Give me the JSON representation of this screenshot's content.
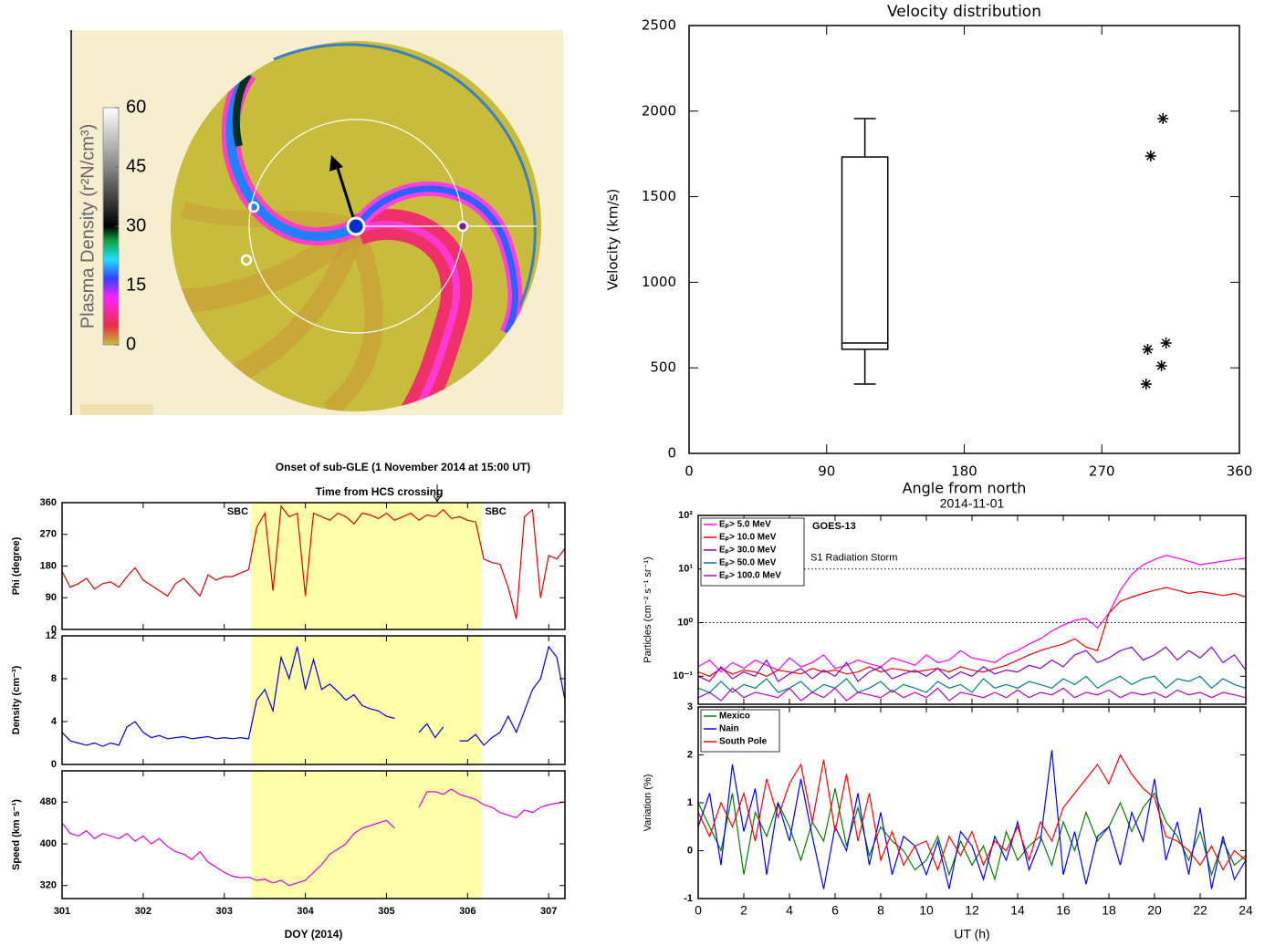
{
  "chart_data": [
    {
      "type": "image",
      "colorbar": {
        "label": "Plasma Density (r²N/cm³)",
        "lim": [
          0,
          60
        ],
        "ticks": [
          0,
          15,
          30,
          45,
          60
        ]
      }
    },
    {
      "type": "box",
      "title": "Velocity distribution",
      "xlabel": "Angle from north",
      "ylabel": "Velocity (km/s)",
      "xlim": [
        0,
        360
      ],
      "xticks": [
        0,
        90,
        180,
        270,
        360
      ],
      "ylim": [
        0,
        2500
      ],
      "yticks": [
        0,
        500,
        1000,
        1500,
        2000,
        2500
      ],
      "box": {
        "x_range": [
          100,
          130
        ],
        "whisker_low": 405,
        "q1": 608,
        "median": 645,
        "q3": 1732,
        "whisker_high": 1956
      },
      "points": {
        "x": [
          310,
          302,
          312,
          300,
          309,
          299
        ],
        "y": [
          1956,
          1738,
          645,
          608,
          512,
          405
        ]
      }
    },
    {
      "type": "line",
      "title": "Onset of sub-GLE (1 November 2014 at 15:00 UT)",
      "subtitle": "Time from HCS crossing",
      "onset_x": 305.625,
      "xlabel": "DOY (2014)",
      "xlim": [
        301,
        307.2
      ],
      "xticks": [
        301,
        302,
        303,
        304,
        305,
        306,
        307
      ],
      "shaded_span": [
        303.33,
        306.17
      ],
      "annotations": [
        "SBC",
        "SBC"
      ],
      "x": [
        301.0,
        301.1,
        301.2,
        301.3,
        301.4,
        301.5,
        301.6,
        301.7,
        301.8,
        301.9,
        302.0,
        302.1,
        302.2,
        302.3,
        302.4,
        302.5,
        302.6,
        302.7,
        302.8,
        302.9,
        303.0,
        303.1,
        303.2,
        303.3,
        303.4,
        303.5,
        303.6,
        303.7,
        303.8,
        303.9,
        304.0,
        304.1,
        304.2,
        304.3,
        304.4,
        304.5,
        304.6,
        304.7,
        304.8,
        304.9,
        305.0,
        305.1,
        305.2,
        305.3,
        305.4,
        305.5,
        305.6,
        305.7,
        305.8,
        305.9,
        306.0,
        306.1,
        306.2,
        306.3,
        306.4,
        306.5,
        306.6,
        306.7,
        306.8,
        306.9,
        307.0,
        307.1,
        307.2
      ],
      "panels": [
        {
          "ylabel": "Phi (degree)",
          "ylim": [
            0,
            360
          ],
          "yticks": [
            0,
            90,
            180,
            270,
            360
          ],
          "series": [
            {
              "color": "#e00000",
              "values": [
                165,
                120,
                130,
                145,
                115,
                130,
                135,
                120,
                150,
                175,
                140,
                125,
                110,
                95,
                130,
                145,
                120,
                95,
                155,
                140,
                150,
                150,
                160,
                170,
                290,
                330,
                110,
                350,
                320,
                330,
                95,
                330,
                320,
                310,
                330,
                320,
                300,
                330,
                325,
                315,
                330,
                310,
                320,
                330,
                310,
                325,
                320,
                340,
                315,
                320,
                310,
                305,
                200,
                190,
                185,
                120,
                30,
                320,
                340,
                90,
                210,
                200,
                230
              ]
            }
          ]
        },
        {
          "ylabel": "Density (cm⁻³)",
          "ylim": [
            0,
            12
          ],
          "yticks": [
            0,
            4,
            8,
            12
          ],
          "series": [
            {
              "color": "#0000e0",
              "values": [
                3,
                2.2,
                2,
                1.8,
                2,
                1.7,
                2,
                1.8,
                3.5,
                4,
                3,
                2.5,
                2.7,
                2.4,
                2.5,
                2.6,
                2.4,
                2.5,
                2.6,
                2.4,
                2.5,
                2.4,
                2.5,
                2.4,
                6,
                7,
                5,
                10,
                8,
                11,
                7,
                9.8,
                7,
                7.5,
                6.8,
                6,
                6.5,
                5.5,
                5.2,
                5,
                4.5,
                4.3,
                null,
                null,
                3,
                3.8,
                2.5,
                3.5,
                null,
                2.2,
                2.2,
                2.8,
                1.8,
                2.5,
                3,
                4.5,
                3,
                5,
                7,
                8,
                11,
                10,
                6
              ]
            }
          ]
        },
        {
          "ylabel": "Speed (km s⁻¹)",
          "ylim": [
            295,
            540
          ],
          "yticks": [
            320,
            400,
            480
          ],
          "series": [
            {
              "color": "#e000e0",
              "values": [
                440,
                420,
                415,
                425,
                410,
                420,
                415,
                410,
                420,
                405,
                415,
                400,
                410,
                395,
                385,
                380,
                370,
                385,
                365,
                355,
                345,
                338,
                335,
                336,
                330,
                332,
                325,
                330,
                320,
                325,
                330,
                345,
                360,
                380,
                390,
                400,
                420,
                430,
                435,
                440,
                445,
                430,
                null,
                null,
                470,
                500,
                500,
                495,
                505,
                495,
                490,
                485,
                475,
                470,
                460,
                455,
                450,
                465,
                460,
                470,
                475,
                478,
                480
              ]
            }
          ]
        }
      ]
    },
    {
      "type": "line",
      "title": "2014-11-01",
      "xlabel": "UT (h)",
      "xlim": [
        0,
        24
      ],
      "xticks": [
        0,
        2,
        4,
        6,
        8,
        10,
        12,
        14,
        16,
        18,
        20,
        22,
        24
      ],
      "x": [
        0,
        0.5,
        1,
        1.5,
        2,
        2.5,
        3,
        3.5,
        4,
        4.5,
        5,
        5.5,
        6,
        6.5,
        7,
        7.5,
        8,
        8.5,
        9,
        9.5,
        10,
        10.5,
        11,
        11.5,
        12,
        12.5,
        13,
        13.5,
        14,
        14.5,
        15,
        15.5,
        16,
        16.5,
        17,
        17.5,
        18,
        18.5,
        19,
        19.5,
        20,
        20.5,
        21,
        21.5,
        22,
        22.5,
        23,
        23.5,
        24
      ],
      "panels": [
        {
          "ylabel": "Particles (cm⁻² s⁻¹ sr⁻¹)",
          "log": true,
          "ylim": [
            0.03,
            100
          ],
          "legend": "upper left",
          "yticks": [
            {
              "value": 0.1,
              "label": "10⁻¹"
            },
            {
              "value": 1,
              "label": "10⁰"
            },
            {
              "value": 10,
              "label": "10¹"
            },
            {
              "value": 100,
              "label": "10²"
            }
          ],
          "annotation": "GOES-13",
          "reference_lines": [
            10,
            1
          ],
          "reference_label": "S1 Radiation Storm",
          "series": [
            {
              "name": "Eₚ>   5.0 MeV",
              "color": "#ff00ff",
              "values": [
                0.15,
                0.2,
                0.12,
                0.18,
                0.14,
                0.2,
                0.16,
                0.13,
                0.22,
                0.15,
                0.18,
                0.25,
                0.14,
                0.16,
                0.2,
                0.17,
                0.15,
                0.22,
                0.19,
                0.16,
                0.25,
                0.18,
                0.2,
                0.3,
                0.22,
                0.2,
                0.18,
                0.25,
                0.3,
                0.4,
                0.5,
                0.7,
                0.9,
                1.1,
                1.2,
                0.8,
                1.5,
                4,
                8,
                12,
                15,
                18,
                16,
                14,
                12,
                13,
                14,
                15,
                16
              ]
            },
            {
              "name": "Eₚ>  10.0 MeV",
              "color": "#ff0000",
              "values": [
                0.12,
                0.1,
                0.14,
                0.11,
                0.13,
                0.12,
                0.1,
                0.13,
                0.12,
                0.11,
                0.14,
                0.12,
                0.13,
                0.11,
                0.12,
                0.15,
                0.12,
                0.14,
                0.13,
                0.12,
                0.13,
                0.14,
                0.12,
                0.15,
                0.13,
                0.12,
                0.14,
                0.16,
                0.2,
                0.25,
                0.3,
                0.35,
                0.4,
                0.5,
                0.35,
                0.3,
                1.5,
                2.5,
                3,
                3.5,
                4,
                4.5,
                4,
                3.5,
                3.8,
                3.5,
                3.2,
                3.5,
                3
              ]
            },
            {
              "name": "Eₚ>  30.0 MeV",
              "color": "#8a00d0",
              "values": [
                0.1,
                0.08,
                0.15,
                0.09,
                0.12,
                0.1,
                0.2,
                0.08,
                0.11,
                0.14,
                0.09,
                0.13,
                0.1,
                0.18,
                0.08,
                0.12,
                0.15,
                0.09,
                0.11,
                0.13,
                0.1,
                0.14,
                0.09,
                0.12,
                0.1,
                0.15,
                0.11,
                0.13,
                0.12,
                0.16,
                0.14,
                0.2,
                0.15,
                0.25,
                0.3,
                0.18,
                0.22,
                0.3,
                0.35,
                0.2,
                0.25,
                0.35,
                0.2,
                0.3,
                0.22,
                0.35,
                0.18,
                0.25,
                0.13
              ]
            },
            {
              "name": "Eₚ>  50.0 MeV",
              "color": "#008080",
              "values": [
                0.06,
                0.05,
                0.08,
                0.05,
                0.07,
                0.06,
                0.09,
                0.05,
                0.06,
                0.08,
                0.05,
                0.07,
                0.06,
                0.09,
                0.05,
                0.06,
                0.08,
                0.05,
                0.07,
                0.06,
                0.05,
                0.08,
                0.06,
                0.07,
                0.05,
                0.09,
                0.06,
                0.07,
                0.06,
                0.08,
                0.07,
                0.06,
                0.09,
                0.07,
                0.1,
                0.06,
                0.08,
                0.1,
                0.07,
                0.09,
                0.1,
                0.06,
                0.09,
                0.08,
                0.1,
                0.06,
                0.09,
                0.07,
                0.06
              ]
            },
            {
              "name": "Eₚ> 100.0 MeV",
              "color": "#c000c0",
              "values": [
                0.04,
                0.05,
                0.035,
                0.06,
                0.04,
                0.05,
                0.045,
                0.04,
                0.06,
                0.035,
                0.05,
                0.04,
                0.06,
                0.035,
                0.05,
                0.045,
                0.04,
                0.055,
                0.04,
                0.05,
                0.04,
                0.06,
                0.035,
                0.05,
                0.045,
                0.04,
                0.05,
                0.04,
                0.055,
                0.04,
                0.05,
                0.045,
                0.06,
                0.04,
                0.05,
                0.045,
                0.055,
                0.04,
                0.05,
                0.045,
                0.05,
                0.04,
                0.055,
                0.045,
                0.05,
                0.04,
                0.05,
                0.045,
                0.04
              ]
            }
          ]
        },
        {
          "ylabel": "Variation (%)",
          "ylim": [
            -1,
            3
          ],
          "yticks": [
            -1,
            0,
            1,
            2,
            3
          ],
          "legend": "upper left",
          "series": [
            {
              "name": "Mexico",
              "color": "#008000",
              "values": [
                1,
                0.5,
                0,
                1.2,
                -0.5,
                0.8,
                0.3,
                1,
                0.5,
                -0.2,
                0.6,
                0.2,
                1.3,
                0.1,
                0.9,
                -0.1,
                0.5,
                0.2,
                0,
                -0.4,
                -0.2,
                0.3,
                -0.5,
                0.2,
                -0.3,
                0.1,
                -0.6,
                0.4,
                -0.2,
                0.1,
                0.3,
                -0.3,
                0.6,
                0,
                0.8,
                0.2,
                0.5,
                1,
                0.4,
                0.9,
                1.2,
                0.6,
                0.3,
                -0.2,
                0.4,
                -0.5,
                0.2,
                -0.3,
                -0.1
              ]
            },
            {
              "name": "Nain",
              "color": "#0000ff",
              "values": [
                0.5,
                1.2,
                -0.3,
                1.8,
                0.4,
                1.3,
                -0.5,
                1,
                0.2,
                1.5,
                0.3,
                -0.8,
                0.5,
                0,
                1.2,
                -0.3,
                0.8,
                -0.5,
                0.3,
                0.1,
                -0.5,
                0.2,
                -0.8,
                0.4,
                0.1,
                -0.6,
                0.3,
                -0.2,
                0.6,
                -0.4,
                0.2,
                2.1,
                -0.5,
                0.4,
                -0.7,
                0.3,
                0.5,
                -0.3,
                0.8,
                0.2,
                1.5,
                -0.2,
                0.6,
                -0.5,
                0.9,
                -0.8,
                0.3,
                -0.6,
                -0.2
              ]
            },
            {
              "name": "South Pole",
              "color": "#ff0000",
              "values": [
                0.8,
                0.3,
                1,
                0.5,
                1.2,
                0.2,
                1.5,
                0.7,
                1.4,
                1.8,
                0.6,
                1.9,
                0.4,
                1.6,
                0.2,
                1.2,
                -0.2,
                0.4,
                -0.3,
                0.1,
                0.2,
                -0.4,
                0.3,
                -0.1,
                0.4,
                -0.3,
                0.2,
                0,
                0.5,
                -0.2,
                0.6,
                0.2,
                0.9,
                1.2,
                1.5,
                1.8,
                1.4,
                2,
                1.6,
                1.3,
                1.1,
                0.3,
                0.2,
                0,
                -0.3,
                0.1,
                -0.4,
                0,
                -0.2
              ]
            }
          ]
        }
      ]
    }
  ]
}
